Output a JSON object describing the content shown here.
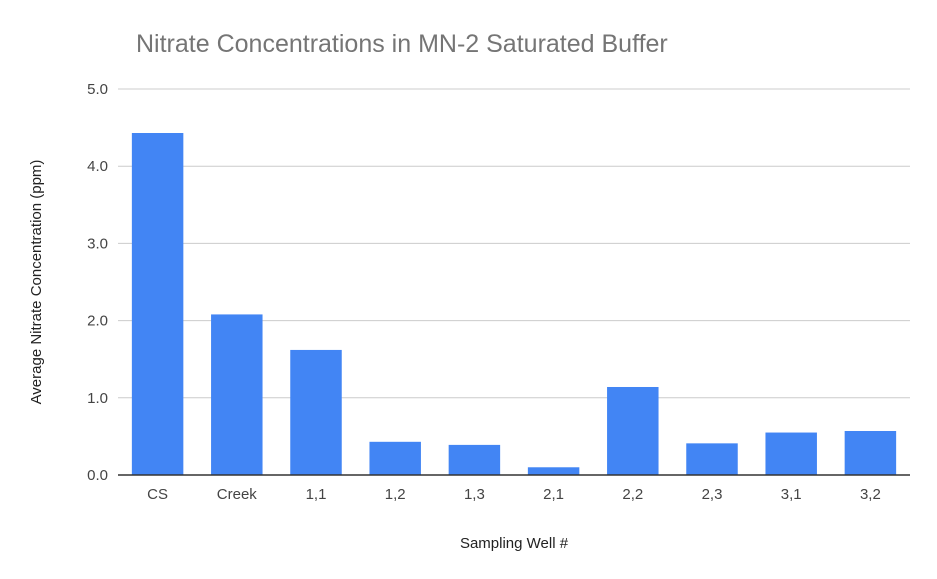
{
  "chart_data": {
    "type": "bar",
    "title": "Nitrate Concentrations in MN-2 Saturated Buffer",
    "xlabel": "Sampling Well #",
    "ylabel": "Average Nitrate Concentration (ppm)",
    "categories": [
      "CS",
      "Creek",
      "1,1",
      "1,2",
      "1,3",
      "2,1",
      "2,2",
      "2,3",
      "3,1",
      "3,2"
    ],
    "values": [
      4.43,
      2.08,
      1.62,
      0.43,
      0.39,
      0.1,
      1.14,
      0.41,
      0.55,
      0.57
    ],
    "ylim": [
      0,
      5
    ],
    "yticks": [
      "0.0",
      "1.0",
      "2.0",
      "3.0",
      "4.0",
      "5.0"
    ],
    "grid": true,
    "legend": "none",
    "bar_color": "#4285f4"
  }
}
